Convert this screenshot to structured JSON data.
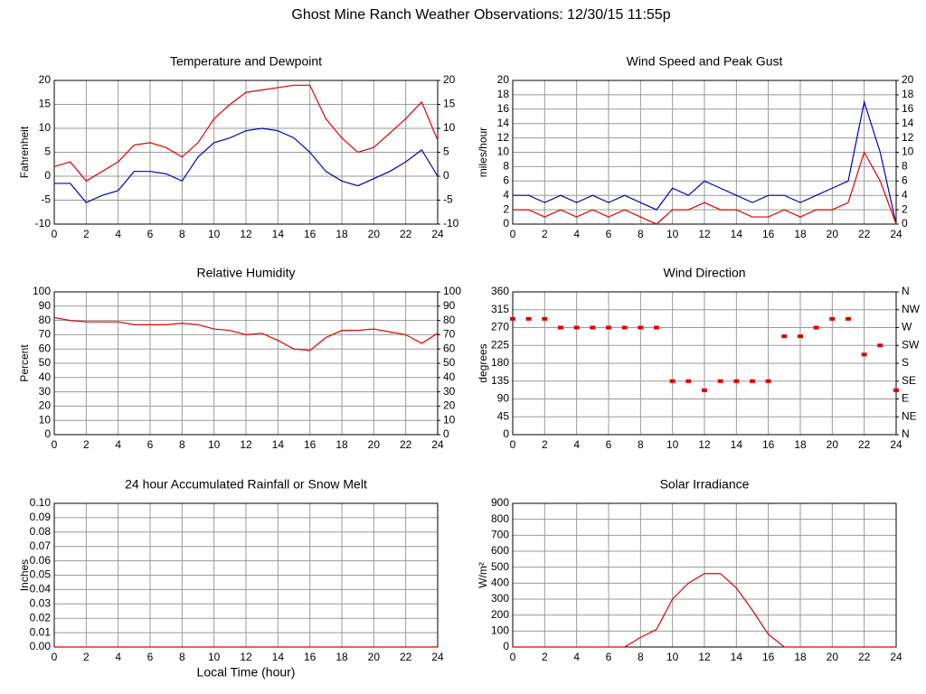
{
  "title": "Ghost Mine Ranch Weather Observations: 12/30/15 11:55p",
  "chart_data": [
    {
      "type": "line",
      "title": "Temperature and Dewpoint",
      "ylabel": "Fahrenheit",
      "x": [
        0,
        1,
        2,
        3,
        4,
        5,
        6,
        7,
        8,
        9,
        10,
        11,
        12,
        13,
        14,
        15,
        16,
        17,
        18,
        19,
        20,
        21,
        22,
        23,
        24
      ],
      "series": [
        {
          "color": "#e00000",
          "values": [
            2,
            3,
            -1,
            1,
            3,
            6.5,
            7,
            6,
            4,
            7,
            12,
            15,
            17.5,
            18,
            18.5,
            19,
            19,
            12,
            8,
            5,
            6,
            9,
            12,
            15.5,
            7.5
          ]
        },
        {
          "color": "#0000c0",
          "values": [
            -1.5,
            -1.5,
            -5.5,
            -4,
            -3,
            1,
            1,
            0.5,
            -1,
            4,
            7,
            8,
            9.5,
            10,
            9.5,
            8,
            5,
            1,
            -1,
            -2,
            -0.5,
            1,
            3,
            5.5,
            0
          ]
        }
      ],
      "xlim": [
        0,
        24
      ],
      "xticks": [
        0,
        2,
        4,
        6,
        8,
        10,
        12,
        14,
        16,
        18,
        20,
        22,
        24
      ],
      "ylim": [
        -10,
        20
      ],
      "yticks": [
        -10,
        -5,
        0,
        5,
        10,
        15,
        20
      ],
      "y2lim": [
        -10,
        20
      ],
      "y2ticks": [
        -10,
        -5,
        0,
        5,
        10,
        15,
        20
      ],
      "grid": true
    },
    {
      "type": "line",
      "title": "Wind Speed and Peak Gust",
      "ylabel": "miles/hour",
      "x": [
        0,
        1,
        2,
        3,
        4,
        5,
        6,
        7,
        8,
        9,
        10,
        11,
        12,
        13,
        14,
        15,
        16,
        17,
        18,
        19,
        20,
        21,
        22,
        23,
        24
      ],
      "series": [
        {
          "color": "#0000c0",
          "values": [
            4,
            4,
            3,
            4,
            3,
            4,
            3,
            4,
            3,
            2,
            5,
            4,
            6,
            5,
            4,
            3,
            4,
            4,
            3,
            4,
            5,
            6,
            17,
            10,
            0
          ]
        },
        {
          "color": "#e00000",
          "values": [
            2,
            2,
            1,
            2,
            1,
            2,
            1,
            2,
            1,
            0,
            2,
            2,
            3,
            2,
            2,
            1,
            1,
            2,
            1,
            2,
            2,
            3,
            10,
            6,
            0
          ]
        }
      ],
      "xlim": [
        0,
        24
      ],
      "xticks": [
        0,
        2,
        4,
        6,
        8,
        10,
        12,
        14,
        16,
        18,
        20,
        22,
        24
      ],
      "ylim": [
        0,
        20
      ],
      "yticks": [
        0,
        2,
        4,
        6,
        8,
        10,
        12,
        14,
        16,
        18,
        20
      ],
      "y2lim": [
        0,
        20
      ],
      "y2ticks": [
        0,
        2,
        4,
        6,
        8,
        10,
        12,
        14,
        16,
        18,
        20
      ],
      "grid": true
    },
    {
      "type": "line",
      "title": "Relative Humidity",
      "ylabel": "Percent",
      "x": [
        0,
        1,
        2,
        3,
        4,
        5,
        6,
        7,
        8,
        9,
        10,
        11,
        12,
        13,
        14,
        15,
        16,
        17,
        18,
        19,
        20,
        21,
        22,
        23,
        24
      ],
      "series": [
        {
          "color": "#e00000",
          "values": [
            82,
            80,
            79,
            79,
            79,
            77,
            77,
            77,
            78,
            77,
            74,
            73,
            70,
            71,
            66,
            60,
            59,
            68,
            73,
            73,
            74,
            72,
            70,
            64,
            71
          ]
        }
      ],
      "xlim": [
        0,
        24
      ],
      "xticks": [
        0,
        2,
        4,
        6,
        8,
        10,
        12,
        14,
        16,
        18,
        20,
        22,
        24
      ],
      "ylim": [
        0,
        100
      ],
      "yticks": [
        0,
        10,
        20,
        30,
        40,
        50,
        60,
        70,
        80,
        90,
        100
      ],
      "y2lim": [
        0,
        100
      ],
      "y2ticks": [
        0,
        10,
        20,
        30,
        40,
        50,
        60,
        70,
        80,
        90,
        100
      ],
      "grid": true
    },
    {
      "type": "scatter",
      "title": "Wind Direction",
      "ylabel": "degrees",
      "x": [
        0,
        1,
        2,
        3,
        4,
        5,
        6,
        7,
        8,
        9,
        10,
        11,
        12,
        13,
        14,
        15,
        16,
        17,
        18,
        19,
        20,
        21,
        22,
        23,
        24
      ],
      "series": [
        {
          "color": "#e00000",
          "values": [
            292,
            292,
            292,
            270,
            270,
            270,
            270,
            270,
            270,
            270,
            135,
            135,
            112,
            135,
            135,
            135,
            135,
            248,
            248,
            270,
            292,
            292,
            202,
            225,
            112
          ]
        }
      ],
      "xlim": [
        0,
        24
      ],
      "xticks": [
        0,
        2,
        4,
        6,
        8,
        10,
        12,
        14,
        16,
        18,
        20,
        22,
        24
      ],
      "ylim": [
        0,
        360
      ],
      "yticks": [
        0,
        45,
        90,
        135,
        180,
        225,
        270,
        315,
        360
      ],
      "y2lim": [
        0,
        360
      ],
      "y2ticks": [
        {
          "value": 0,
          "label": "N"
        },
        {
          "value": 45,
          "label": "NE"
        },
        {
          "value": 90,
          "label": "E"
        },
        {
          "value": 135,
          "label": "SE"
        },
        {
          "value": 180,
          "label": "S"
        },
        {
          "value": 225,
          "label": "SW"
        },
        {
          "value": 270,
          "label": "W"
        },
        {
          "value": 315,
          "label": "NW"
        },
        {
          "value": 360,
          "label": "N"
        }
      ],
      "grid": true
    },
    {
      "type": "line",
      "title": "24 hour Accumulated Rainfall or Snow Melt",
      "ylabel": "Inches",
      "xlabel": "Local Time (hour)",
      "x": [
        0,
        1,
        2,
        3,
        4,
        5,
        6,
        7,
        8,
        9,
        10,
        11,
        12,
        13,
        14,
        15,
        16,
        17,
        18,
        19,
        20,
        21,
        22,
        23,
        24
      ],
      "series": [
        {
          "color": "#e00000",
          "values": [
            0,
            0,
            0,
            0,
            0,
            0,
            0,
            0,
            0,
            0,
            0,
            0,
            0,
            0,
            0,
            0,
            0,
            0,
            0,
            0,
            0,
            0,
            0,
            0,
            0
          ]
        }
      ],
      "xlim": [
        0,
        24
      ],
      "xticks": [
        0,
        2,
        4,
        6,
        8,
        10,
        12,
        14,
        16,
        18,
        20,
        22,
        24
      ],
      "ylim": [
        0,
        0.1
      ],
      "yticks": [
        {
          "value": 0,
          "label": "0.00"
        },
        {
          "value": 0.01,
          "label": "0.01"
        },
        {
          "value": 0.02,
          "label": "0.02"
        },
        {
          "value": 0.03,
          "label": "0.03"
        },
        {
          "value": 0.04,
          "label": "0.04"
        },
        {
          "value": 0.05,
          "label": "0.05"
        },
        {
          "value": 0.06,
          "label": "0.06"
        },
        {
          "value": 0.07,
          "label": "0.07"
        },
        {
          "value": 0.08,
          "label": "0.08"
        },
        {
          "value": 0.09,
          "label": "0.09"
        },
        {
          "value": 0.1,
          "label": "0.10"
        }
      ],
      "grid": true
    },
    {
      "type": "line",
      "title": "Solar Irradiance",
      "ylabel": "W/m²",
      "x": [
        0,
        1,
        2,
        3,
        4,
        5,
        6,
        7,
        8,
        9,
        10,
        11,
        12,
        13,
        14,
        15,
        16,
        17,
        18,
        19,
        20,
        21,
        22,
        23,
        24
      ],
      "series": [
        {
          "color": "#e00000",
          "values": [
            0,
            0,
            0,
            0,
            0,
            0,
            0,
            0,
            60,
            110,
            300,
            400,
            460,
            460,
            370,
            230,
            80,
            0,
            0,
            0,
            0,
            0,
            0,
            0,
            0
          ]
        }
      ],
      "xlim": [
        0,
        24
      ],
      "xticks": [
        0,
        2,
        4,
        6,
        8,
        10,
        12,
        14,
        16,
        18,
        20,
        22,
        24
      ],
      "ylim": [
        0,
        900
      ],
      "yticks": [
        0,
        100,
        200,
        300,
        400,
        500,
        600,
        700,
        800,
        900
      ],
      "grid": true
    }
  ]
}
